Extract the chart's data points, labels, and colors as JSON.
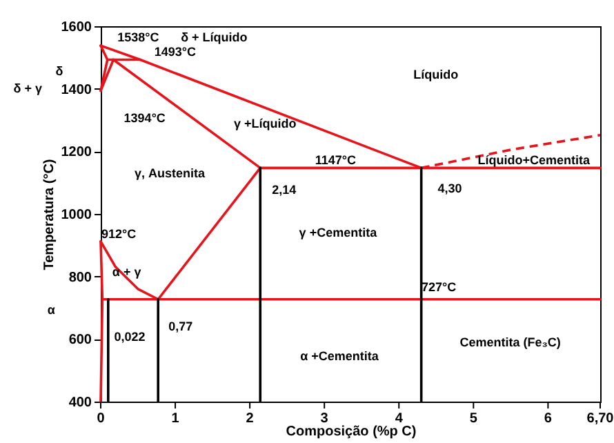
{
  "chart_data": {
    "type": "line",
    "xlabel": "Composição (%p C)",
    "ylabel": "Temperatura (°C)",
    "xlim": [
      0,
      6.7
    ],
    "ylim": [
      400,
      1600
    ],
    "xticks": [
      0,
      1,
      2,
      3,
      4,
      5,
      6,
      {
        "value": 6.7,
        "label": "6,70"
      }
    ],
    "yticks": [
      400,
      600,
      800,
      1000,
      1200,
      1400,
      1600
    ],
    "grid": false,
    "marker": "none",
    "line_style": "solid",
    "series": [
      {
        "color": "#e8141c",
        "x": [
          0,
          0.53,
          4.3
        ],
        "values": [
          1538,
          1493,
          1147
        ]
      },
      {
        "color": "#e8141c",
        "x": [
          4.3,
          5.5,
          6.7
        ],
        "values": [
          1147,
          1205,
          1252
        ],
        "line_style": "dashed"
      },
      {
        "color": "#e8141c",
        "x": [
          0,
          0.09
        ],
        "values": [
          1538,
          1493
        ]
      },
      {
        "color": "#e8141c",
        "x": [
          0.09,
          0.53
        ],
        "values": [
          1493,
          1493
        ]
      },
      {
        "color": "#e8141c",
        "x": [
          0,
          0.09
        ],
        "values": [
          1394,
          1493
        ]
      },
      {
        "color": "#e8141c",
        "x": [
          0,
          0.17
        ],
        "values": [
          1394,
          1493
        ]
      },
      {
        "color": "#e8141c",
        "x": [
          0.17,
          2.14
        ],
        "values": [
          1493,
          1147
        ]
      },
      {
        "color": "#e8141c",
        "x": [
          2.14,
          6.7
        ],
        "values": [
          1147,
          1147
        ]
      },
      {
        "color": "#e8141c",
        "x": [
          2.14,
          0.77
        ],
        "values": [
          1147,
          727
        ]
      },
      {
        "color": "#e8141c",
        "x": [
          0,
          0.2,
          0.5,
          0.77
        ],
        "values": [
          912,
          830,
          760,
          727
        ]
      },
      {
        "color": "#e8141c",
        "x": [
          0,
          0.022,
          0
        ],
        "values": [
          912,
          727,
          400
        ]
      },
      {
        "color": "#e8141c",
        "x": [
          0.022,
          6.7
        ],
        "values": [
          727,
          727
        ]
      },
      {
        "color": "#000000",
        "x": [
          0.1,
          0.1
        ],
        "values": [
          727,
          400
        ]
      },
      {
        "color": "#000000",
        "x": [
          0.77,
          0.77
        ],
        "values": [
          727,
          400
        ]
      },
      {
        "color": "#000000",
        "x": [
          2.14,
          2.14
        ],
        "values": [
          1147,
          400
        ]
      },
      {
        "color": "#000000",
        "x": [
          4.3,
          4.3
        ],
        "values": [
          1147,
          400
        ]
      }
    ],
    "annotations": [
      "1538°C",
      "δ + Líquido",
      "1493°C",
      "1394°C",
      "Líquido",
      "γ +Líquido",
      "γ, Austenita",
      "1147°C",
      "2,14",
      "4,30",
      "Líquido+Cementita",
      "912°C",
      "γ +Cementita",
      "α + γ",
      "727°C",
      "0,022",
      "0,77",
      "α +Cementita",
      "Cementita (Fe₃C)",
      "δ",
      "δ + γ",
      "α"
    ]
  }
}
